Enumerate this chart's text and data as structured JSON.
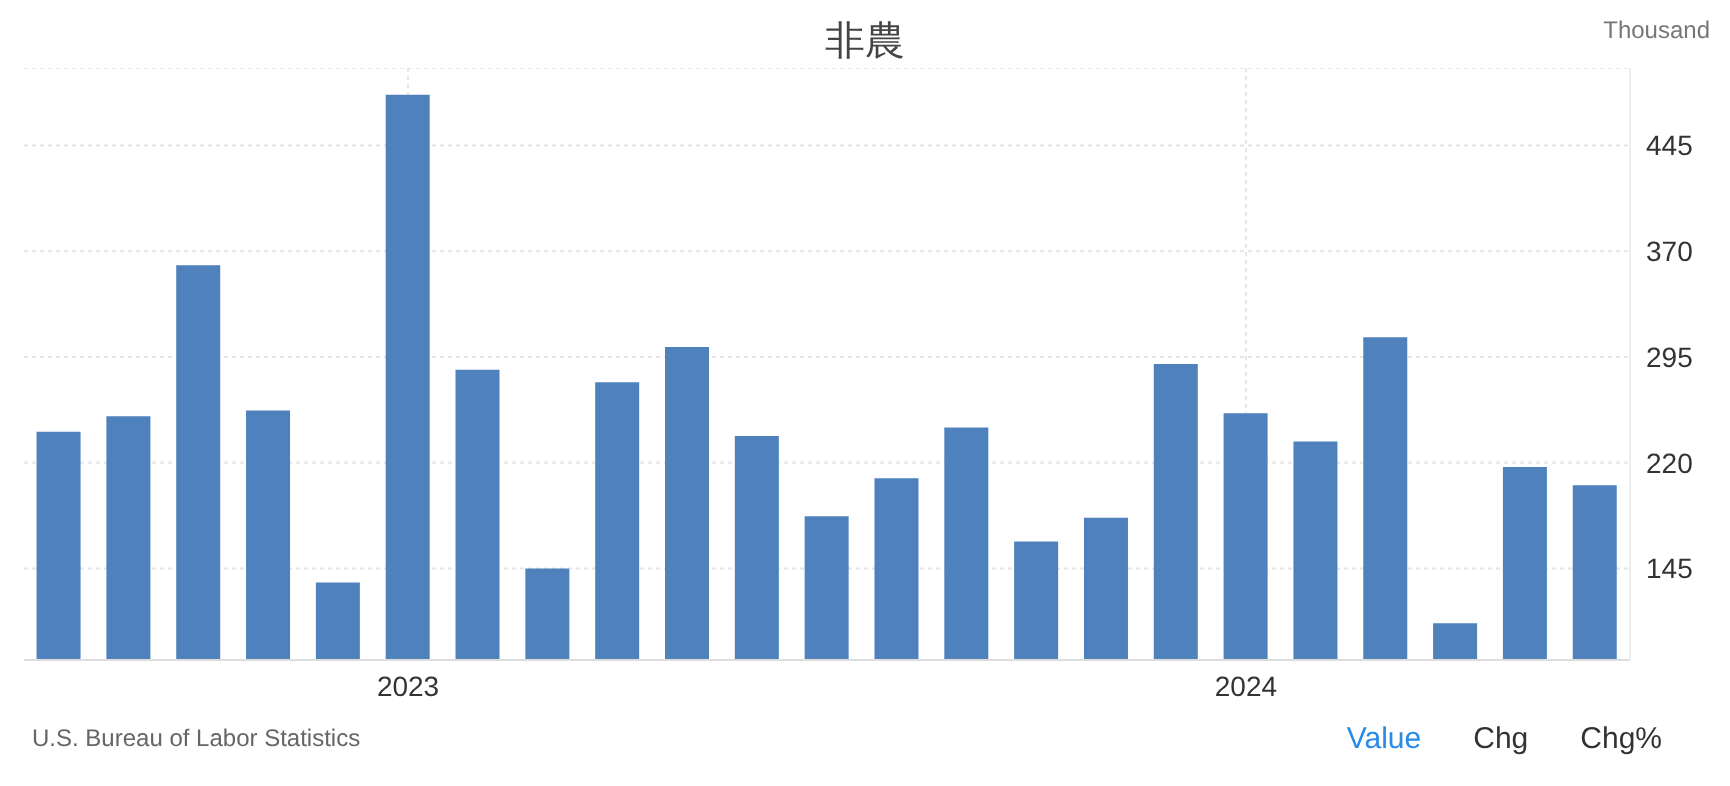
{
  "chart_data": {
    "type": "bar",
    "title": "非農",
    "ylabel": "Thousand",
    "categories": [
      null,
      null,
      null,
      null,
      null,
      "2023",
      null,
      null,
      null,
      null,
      null,
      null,
      null,
      null,
      null,
      null,
      null,
      "2024",
      null,
      null,
      null,
      null,
      null
    ],
    "values": [
      242,
      253,
      360,
      257,
      135,
      481,
      286,
      145,
      277,
      302,
      239,
      182,
      209,
      245,
      164,
      181,
      290,
      255,
      235,
      309,
      106,
      217,
      204
    ],
    "color": "#4f81bd",
    "ylim": [
      80,
      500
    ],
    "yticks": [
      145,
      220,
      295,
      370,
      445
    ],
    "grid": true,
    "annotations": [
      "U.S. Bureau of Labor Statistics",
      "Value",
      "Chg",
      "Chg%"
    ]
  }
}
